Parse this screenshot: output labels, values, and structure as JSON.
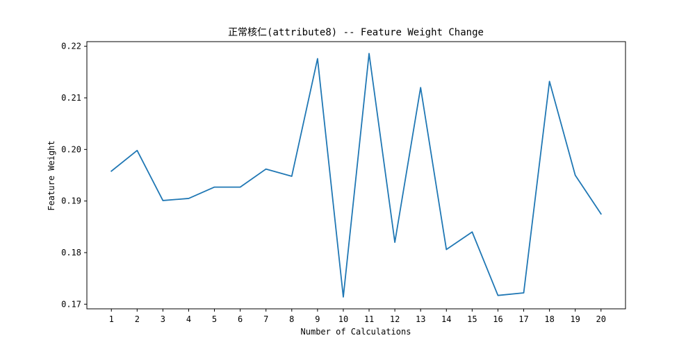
{
  "chart_data": {
    "type": "line",
    "title": "正常核仁(attribute8) -- Feature Weight Change",
    "xlabel": "Number of Calculations",
    "ylabel": "Feature Weight",
    "x": [
      1,
      2,
      3,
      4,
      5,
      6,
      7,
      8,
      9,
      10,
      11,
      12,
      13,
      14,
      15,
      16,
      17,
      18,
      19,
      20
    ],
    "series": [
      {
        "values": [
          0.1958,
          0.1998,
          0.1901,
          0.1905,
          0.1927,
          0.1927,
          0.1962,
          0.1948,
          0.2176,
          0.1714,
          0.2186,
          0.182,
          0.212,
          0.1806,
          0.184,
          0.1717,
          0.1722,
          0.2132,
          0.195,
          0.1875
        ],
        "color": "#1f77b4"
      }
    ],
    "xlim": [
      0.05,
      20.95
    ],
    "ylim": [
      0.1691,
      0.2209
    ],
    "xticks": [
      "1",
      "2",
      "3",
      "4",
      "5",
      "6",
      "7",
      "8",
      "9",
      "10",
      "11",
      "12",
      "13",
      "14",
      "15",
      "16",
      "17",
      "18",
      "19",
      "20"
    ],
    "yticks": [
      "0.17",
      "0.18",
      "0.19",
      "0.20",
      "0.21",
      "0.22"
    ],
    "grid": false,
    "legend": "none"
  }
}
